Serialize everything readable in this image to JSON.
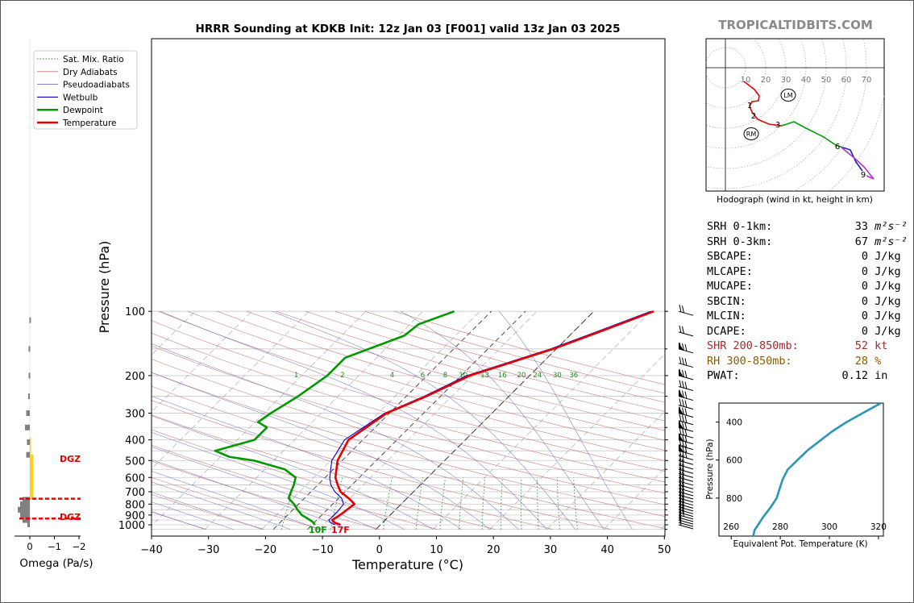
{
  "title": "HRRR Sounding at KDKB Init: 12z Jan 03 [F001] valid 13z Jan 03 2025",
  "brand": "TROPICALTIDBITS.COM",
  "colors": {
    "temperature": "#e60000",
    "dewpoint": "#009900",
    "wetbulb": "#0000cc",
    "shr": "#a52a2a",
    "rh": "#8b5a00",
    "theta_e": "#2a96b4"
  },
  "legend": [
    {
      "label": "Sat. Mix. Ratio",
      "style": "sat"
    },
    {
      "label": "Dry Adiabats",
      "style": "dry"
    },
    {
      "label": "Pseudoadiabats",
      "style": "moist"
    },
    {
      "label": "Wetbulb",
      "style": "wetbulb"
    },
    {
      "label": "Dewpoint",
      "style": "dewpoint"
    },
    {
      "label": "Temperature",
      "style": "temperature"
    }
  ],
  "surface_labels": {
    "dewpoint": "10F",
    "temperature": "17F"
  },
  "omega": {
    "xlabel": "Omega (Pa/s)",
    "ticks": [
      "0",
      "−1",
      "−2"
    ],
    "dgz_label": "DGZ"
  },
  "hodograph": {
    "caption": "Hodograph (wind in kt, height in km)",
    "ring_labels": [
      "10",
      "20",
      "30",
      "40",
      "50",
      "60",
      "70"
    ],
    "height_labels": [
      "1",
      "2",
      "3",
      "6",
      "9"
    ],
    "markers": [
      "LM",
      "RM"
    ]
  },
  "stats": [
    {
      "key": "SRH 0-1km:",
      "value": "33",
      "unit": "m²s⁻²",
      "color": "black"
    },
    {
      "key": "SRH 0-3km:",
      "value": "67",
      "unit": "m²s⁻²",
      "color": "black"
    },
    {
      "key": "SBCAPE:",
      "value": "0",
      "unit": "J/kg",
      "color": "black"
    },
    {
      "key": "MLCAPE:",
      "value": "0",
      "unit": "J/kg",
      "color": "black"
    },
    {
      "key": "MUCAPE:",
      "value": "0",
      "unit": "J/kg",
      "color": "black"
    },
    {
      "key": "SBCIN:",
      "value": "0",
      "unit": "J/kg",
      "color": "black"
    },
    {
      "key": "MLCIN:",
      "value": "0",
      "unit": "J/kg",
      "color": "black"
    },
    {
      "key": "DCAPE:",
      "value": "0",
      "unit": "J/kg",
      "color": "black"
    },
    {
      "key": "SHR 200-850mb:",
      "value": "52",
      "unit": "kt",
      "color": "shr"
    },
    {
      "key": "RH 300-850mb:",
      "value": "28",
      "unit": "%",
      "color": "rh"
    },
    {
      "key": "PWAT:",
      "value": "0.12",
      "unit": "in",
      "color": "black"
    }
  ],
  "chart_data": [
    {
      "type": "line",
      "name": "skew-t",
      "xlabel": "Temperature (°C)",
      "ylabel": "Pressure (hPa)",
      "xlim": [
        -40,
        50
      ],
      "ylim": [
        1050,
        100
      ],
      "x_ticks": [
        -40,
        -30,
        -20,
        -10,
        0,
        10,
        20,
        30,
        40,
        50
      ],
      "y_ticks": [
        100,
        200,
        300,
        400,
        500,
        600,
        700,
        800,
        900,
        1000
      ],
      "mixing_ratio_labels": [
        "1",
        "2",
        "4",
        "6",
        "8",
        "10",
        "13",
        "16",
        "20",
        "24",
        "30",
        "36"
      ],
      "log_y": true,
      "series": [
        {
          "name": "Temperature",
          "pressure": [
            1000,
            975,
            950,
            900,
            850,
            800,
            775,
            750,
            700,
            650,
            600,
            500,
            400,
            300,
            250,
            200,
            150,
            125,
            100
          ],
          "values": [
            -7,
            -8.5,
            -9.3,
            -8.8,
            -8.5,
            -8.2,
            -9.2,
            -10.3,
            -12.8,
            -14.5,
            -16.2,
            -18.8,
            -20.5,
            -18.5,
            -14.5,
            -10.5,
            -0.5,
            4.5,
            10.5
          ]
        },
        {
          "name": "Dewpoint",
          "pressure": [
            1000,
            975,
            950,
            900,
            850,
            800,
            750,
            700,
            650,
            600,
            550,
            500,
            480,
            450,
            400,
            350,
            330,
            300,
            250,
            200,
            165,
            130,
            115,
            100
          ],
          "values": [
            -11.5,
            -12.2,
            -13.2,
            -15.5,
            -17.2,
            -18.8,
            -20.8,
            -21.5,
            -22.2,
            -23.2,
            -26.5,
            -33.5,
            -38.5,
            -42,
            -37,
            -37,
            -39.5,
            -38.8,
            -37,
            -35.5,
            -35.5,
            -29,
            -28.5,
            -24.5
          ]
        },
        {
          "name": "Wetbulb",
          "pressure": [
            1000,
            975,
            950,
            900,
            850,
            800,
            750,
            700,
            650,
            600,
            500,
            400,
            300,
            250,
            200,
            150,
            125,
            100
          ],
          "values": [
            -8,
            -9.2,
            -9.9,
            -9.8,
            -9.9,
            -10.1,
            -11.5,
            -13.8,
            -15.7,
            -17.2,
            -19.8,
            -21.2,
            -18.8,
            -14.9,
            -11,
            -1,
            4,
            10
          ]
        }
      ],
      "omega_values": [
        {
          "pressure": 110,
          "value": 0.02
        },
        {
          "pressure": 150,
          "value": 0.05
        },
        {
          "pressure": 200,
          "value": 0.05
        },
        {
          "pressure": 250,
          "value": 0.07
        },
        {
          "pressure": 300,
          "value": 0.15
        },
        {
          "pressure": 350,
          "value": 0.2
        },
        {
          "pressure": 410,
          "value": 0.12
        },
        {
          "pressure": 470,
          "value": 0.15
        },
        {
          "pressure": 570,
          "value": -0.05
        },
        {
          "pressure": 630,
          "value": -0.03
        },
        {
          "pressure": 800,
          "value": 0.4
        },
        {
          "pressure": 850,
          "value": 0.5
        },
        {
          "pressure": 900,
          "value": 0.4
        },
        {
          "pressure": 950,
          "value": 0.3
        }
      ],
      "dgz_pressure": [
        755,
        935
      ]
    },
    {
      "type": "line",
      "name": "theta-e",
      "xlabel": "Equivalent Pot. Temperature (K)",
      "ylabel": "Pressure (hPa)",
      "xlim": [
        255,
        322
      ],
      "ylim": [
        1000,
        300
      ],
      "x_ticks": [
        260,
        280,
        300,
        320
      ],
      "y_ticks": [
        400,
        600,
        800
      ],
      "series": [
        {
          "name": "theta-e",
          "pressure": [
            1000,
            970,
            940,
            900,
            850,
            800,
            760,
            700,
            650,
            600,
            550,
            500,
            450,
            400,
            350,
            300
          ],
          "values": [
            269,
            269.5,
            271,
            273,
            276,
            278.5,
            279.5,
            281,
            283,
            287,
            291,
            296,
            301,
            307,
            314,
            321
          ]
        }
      ]
    }
  ]
}
